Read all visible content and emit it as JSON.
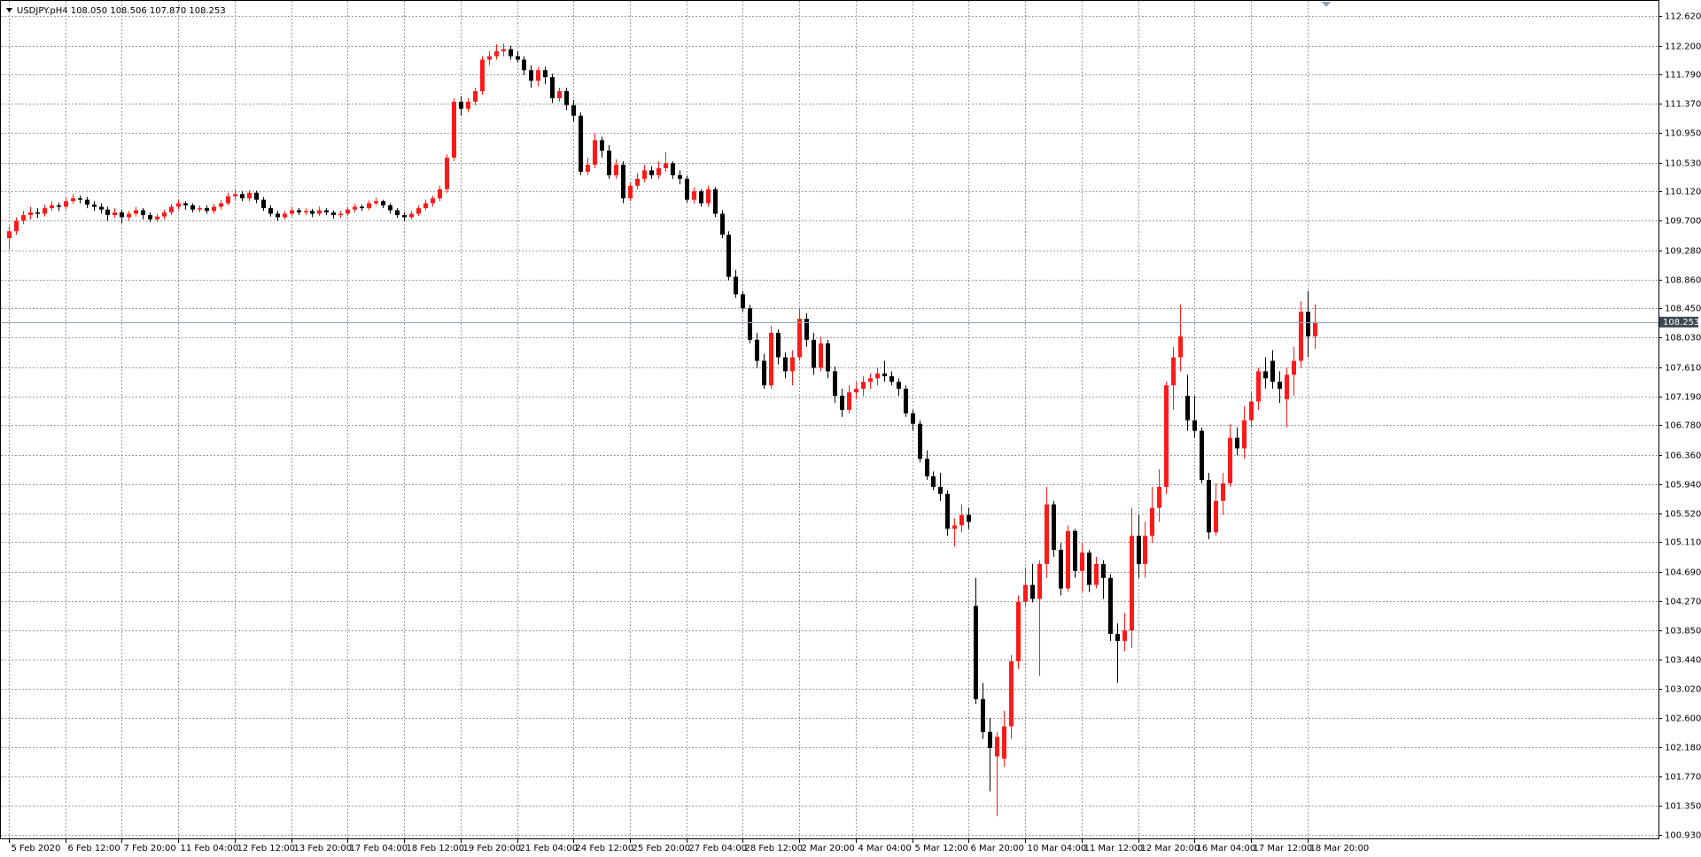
{
  "chart_data": {
    "type": "candlestick",
    "title": "USDJPY.pH4  108.050 108.506 107.870 108.253",
    "up_color": "#ff1a1a",
    "down_color": "#000000",
    "grid": true,
    "xlim": [
      -1,
      233.5
    ],
    "ylim": [
      100.88,
      112.827
    ],
    "last_price": {
      "value": 108.253,
      "label": "108.253"
    },
    "xticks": [
      {
        "value": 0,
        "label": "5 Feb 2020"
      },
      {
        "value": 8,
        "label": "6 Feb 12:00"
      },
      {
        "value": 16,
        "label": "7 Feb 20:00"
      },
      {
        "value": 24,
        "label": "11 Feb 04:00"
      },
      {
        "value": 32,
        "label": "12 Feb 12:00"
      },
      {
        "value": 40,
        "label": "13 Feb 20:00"
      },
      {
        "value": 48,
        "label": "17 Feb 04:00"
      },
      {
        "value": 56,
        "label": "18 Feb 12:00"
      },
      {
        "value": 64,
        "label": "19 Feb 20:00"
      },
      {
        "value": 72,
        "label": "21 Feb 04:00"
      },
      {
        "value": 80,
        "label": "24 Feb 12:00"
      },
      {
        "value": 88,
        "label": "25 Feb 20:00"
      },
      {
        "value": 96,
        "label": "27 Feb 04:00"
      },
      {
        "value": 104,
        "label": "28 Feb 12:00"
      },
      {
        "value": 112,
        "label": "2 Mar 20:00"
      },
      {
        "value": 120,
        "label": "4 Mar 04:00"
      },
      {
        "value": 128,
        "label": "5 Mar 12:00"
      },
      {
        "value": 136,
        "label": "6 Mar 20:00"
      },
      {
        "value": 144,
        "label": "10 Mar 04:00"
      },
      {
        "value": 152,
        "label": "11 Mar 12:00"
      },
      {
        "value": 160,
        "label": "12 Mar 20:00"
      },
      {
        "value": 168,
        "label": "16 Mar 04:00"
      },
      {
        "value": 176,
        "label": "17 Mar 12:00"
      },
      {
        "value": 184,
        "label": "18 Mar 20:00"
      }
    ],
    "yticks": [
      {
        "value": 112.62,
        "label": "112.620"
      },
      {
        "value": 112.2,
        "label": "112.200"
      },
      {
        "value": 111.79,
        "label": "111.790"
      },
      {
        "value": 111.37,
        "label": "111.370"
      },
      {
        "value": 110.95,
        "label": "110.950"
      },
      {
        "value": 110.53,
        "label": "110.530"
      },
      {
        "value": 110.12,
        "label": "110.120"
      },
      {
        "value": 109.7,
        "label": "109.700"
      },
      {
        "value": 109.28,
        "label": "109.280"
      },
      {
        "value": 108.86,
        "label": "108.860"
      },
      {
        "value": 108.45,
        "label": "108.450"
      },
      {
        "value": 108.03,
        "label": "108.030"
      },
      {
        "value": 107.61,
        "label": "107.610"
      },
      {
        "value": 107.19,
        "label": "107.190"
      },
      {
        "value": 106.78,
        "label": "106.780"
      },
      {
        "value": 106.36,
        "label": "106.360"
      },
      {
        "value": 105.94,
        "label": "105.940"
      },
      {
        "value": 105.52,
        "label": "105.520"
      },
      {
        "value": 105.11,
        "label": "105.110"
      },
      {
        "value": 104.69,
        "label": "104.690"
      },
      {
        "value": 104.27,
        "label": "104.270"
      },
      {
        "value": 103.85,
        "label": "103.850"
      },
      {
        "value": 103.44,
        "label": "103.440"
      },
      {
        "value": 103.02,
        "label": "103.020"
      },
      {
        "value": 102.6,
        "label": "102.600"
      },
      {
        "value": 102.18,
        "label": "102.180"
      },
      {
        "value": 101.77,
        "label": "101.770"
      },
      {
        "value": 101.35,
        "label": "101.350"
      },
      {
        "value": 100.93,
        "label": "100.930"
      }
    ],
    "ohlc": [
      [
        109.45,
        109.62,
        109.3,
        109.55
      ],
      [
        109.55,
        109.75,
        109.5,
        109.7
      ],
      [
        109.7,
        109.84,
        109.65,
        109.78
      ],
      [
        109.78,
        109.9,
        109.72,
        109.82
      ],
      [
        109.82,
        109.88,
        109.74,
        109.8
      ],
      [
        109.8,
        109.93,
        109.76,
        109.88
      ],
      [
        109.88,
        109.98,
        109.84,
        109.92
      ],
      [
        109.92,
        109.96,
        109.84,
        109.9
      ],
      [
        109.9,
        110.03,
        109.86,
        109.98
      ],
      [
        109.98,
        110.08,
        109.94,
        110.02
      ],
      [
        110.02,
        110.06,
        109.95,
        110.0
      ],
      [
        110.0,
        110.04,
        109.88,
        109.93
      ],
      [
        109.93,
        109.98,
        109.84,
        109.9
      ],
      [
        109.9,
        109.95,
        109.8,
        109.86
      ],
      [
        109.86,
        109.9,
        109.7,
        109.78
      ],
      [
        109.78,
        109.88,
        109.74,
        109.82
      ],
      [
        109.82,
        109.86,
        109.66,
        109.75
      ],
      [
        109.75,
        109.84,
        109.7,
        109.8
      ],
      [
        109.8,
        109.9,
        109.76,
        109.85
      ],
      [
        109.85,
        109.88,
        109.72,
        109.78
      ],
      [
        109.78,
        109.82,
        109.68,
        109.72
      ],
      [
        109.72,
        109.8,
        109.68,
        109.76
      ],
      [
        109.76,
        109.86,
        109.72,
        109.82
      ],
      [
        109.82,
        109.94,
        109.78,
        109.9
      ],
      [
        109.9,
        110.0,
        109.86,
        109.95
      ],
      [
        109.95,
        109.98,
        109.86,
        109.92
      ],
      [
        109.92,
        109.95,
        109.82,
        109.86
      ],
      [
        109.86,
        109.92,
        109.82,
        109.88
      ],
      [
        109.88,
        109.92,
        109.8,
        109.84
      ],
      [
        109.84,
        109.94,
        109.8,
        109.9
      ],
      [
        109.9,
        110.0,
        109.86,
        109.95
      ],
      [
        109.95,
        110.1,
        109.92,
        110.05
      ],
      [
        110.05,
        110.14,
        110.0,
        110.08
      ],
      [
        110.08,
        110.12,
        109.98,
        110.02
      ],
      [
        110.02,
        110.14,
        109.98,
        110.1
      ],
      [
        110.1,
        110.13,
        109.95,
        110.0
      ],
      [
        110.0,
        110.04,
        109.84,
        109.88
      ],
      [
        109.88,
        109.92,
        109.76,
        109.8
      ],
      [
        109.8,
        109.84,
        109.7,
        109.75
      ],
      [
        109.75,
        109.84,
        109.72,
        109.8
      ],
      [
        109.8,
        109.9,
        109.76,
        109.85
      ],
      [
        109.85,
        109.88,
        109.78,
        109.82
      ],
      [
        109.82,
        109.88,
        109.78,
        109.84
      ],
      [
        109.84,
        109.87,
        109.75,
        109.8
      ],
      [
        109.8,
        109.9,
        109.77,
        109.85
      ],
      [
        109.85,
        109.88,
        109.78,
        109.82
      ],
      [
        109.82,
        109.85,
        109.73,
        109.78
      ],
      [
        109.78,
        109.84,
        109.74,
        109.8
      ],
      [
        109.8,
        109.9,
        109.77,
        109.86
      ],
      [
        109.86,
        109.94,
        109.82,
        109.9
      ],
      [
        109.9,
        109.93,
        109.84,
        109.88
      ],
      [
        109.88,
        109.99,
        109.85,
        109.95
      ],
      [
        109.95,
        110.03,
        109.92,
        109.98
      ],
      [
        109.98,
        110.0,
        109.88,
        109.92
      ],
      [
        109.92,
        109.95,
        109.8,
        109.85
      ],
      [
        109.85,
        109.88,
        109.74,
        109.78
      ],
      [
        109.78,
        109.82,
        109.7,
        109.75
      ],
      [
        109.75,
        109.84,
        109.72,
        109.8
      ],
      [
        109.8,
        109.92,
        109.77,
        109.88
      ],
      [
        109.88,
        110.0,
        109.85,
        109.95
      ],
      [
        109.95,
        110.06,
        109.9,
        110.02
      ],
      [
        110.02,
        110.2,
        109.98,
        110.15
      ],
      [
        110.15,
        110.65,
        110.1,
        110.6
      ],
      [
        110.6,
        111.45,
        110.55,
        111.4
      ],
      [
        111.4,
        111.48,
        111.2,
        111.3
      ],
      [
        111.3,
        111.45,
        111.25,
        111.4
      ],
      [
        111.4,
        111.6,
        111.35,
        111.55
      ],
      [
        111.55,
        112.05,
        111.5,
        112.0
      ],
      [
        112.0,
        112.12,
        111.92,
        112.05
      ],
      [
        112.05,
        112.22,
        112.0,
        112.12
      ],
      [
        112.12,
        112.23,
        112.05,
        112.15
      ],
      [
        112.15,
        112.2,
        112.0,
        112.05
      ],
      [
        112.05,
        112.12,
        111.96,
        112.0
      ],
      [
        112.0,
        112.05,
        111.78,
        111.85
      ],
      [
        111.85,
        111.92,
        111.6,
        111.7
      ],
      [
        111.7,
        111.9,
        111.62,
        111.85
      ],
      [
        111.85,
        111.9,
        111.65,
        111.75
      ],
      [
        111.75,
        111.8,
        111.38,
        111.45
      ],
      [
        111.45,
        111.6,
        111.4,
        111.55
      ],
      [
        111.55,
        111.6,
        111.28,
        111.35
      ],
      [
        111.35,
        111.42,
        111.12,
        111.2
      ],
      [
        111.2,
        111.25,
        110.35,
        110.4
      ],
      [
        110.4,
        110.6,
        110.35,
        110.5
      ],
      [
        110.5,
        110.95,
        110.45,
        110.85
      ],
      [
        110.85,
        110.9,
        110.6,
        110.7
      ],
      [
        110.7,
        110.78,
        110.3,
        110.35
      ],
      [
        110.35,
        110.58,
        110.3,
        110.5
      ],
      [
        110.5,
        110.55,
        109.95,
        110.02
      ],
      [
        110.02,
        110.25,
        109.98,
        110.2
      ],
      [
        110.2,
        110.38,
        110.15,
        110.3
      ],
      [
        110.3,
        110.5,
        110.25,
        110.42
      ],
      [
        110.42,
        110.48,
        110.3,
        110.35
      ],
      [
        110.35,
        110.55,
        110.3,
        110.45
      ],
      [
        110.45,
        110.68,
        110.4,
        110.52
      ],
      [
        110.52,
        110.55,
        110.3,
        110.35
      ],
      [
        110.35,
        110.42,
        110.22,
        110.3
      ],
      [
        110.3,
        110.34,
        109.96,
        110.0
      ],
      [
        110.0,
        110.18,
        109.95,
        110.12
      ],
      [
        110.12,
        110.15,
        109.9,
        109.95
      ],
      [
        109.95,
        110.2,
        109.9,
        110.15
      ],
      [
        110.15,
        110.18,
        109.75,
        109.8
      ],
      [
        109.8,
        109.85,
        109.45,
        109.5
      ],
      [
        109.5,
        109.55,
        108.85,
        108.9
      ],
      [
        108.9,
        109.0,
        108.6,
        108.65
      ],
      [
        108.65,
        108.7,
        108.4,
        108.45
      ],
      [
        108.45,
        108.5,
        107.95,
        108.0
      ],
      [
        108.0,
        108.1,
        107.6,
        107.7
      ],
      [
        107.7,
        107.8,
        107.3,
        107.35
      ],
      [
        107.35,
        108.2,
        107.3,
        108.1
      ],
      [
        108.1,
        108.15,
        107.65,
        107.75
      ],
      [
        107.75,
        107.82,
        107.45,
        107.55
      ],
      [
        107.55,
        107.85,
        107.35,
        107.75
      ],
      [
        107.75,
        108.45,
        107.7,
        108.3
      ],
      [
        108.3,
        108.38,
        107.9,
        108.0
      ],
      [
        108.0,
        108.1,
        107.5,
        107.6
      ],
      [
        107.6,
        108.05,
        107.55,
        107.95
      ],
      [
        107.95,
        108.0,
        107.45,
        107.55
      ],
      [
        107.55,
        107.62,
        107.1,
        107.2
      ],
      [
        107.2,
        107.3,
        106.9,
        107.0
      ],
      [
        107.0,
        107.35,
        106.95,
        107.25
      ],
      [
        107.25,
        107.4,
        107.15,
        107.3
      ],
      [
        107.3,
        107.48,
        107.2,
        107.4
      ],
      [
        107.4,
        107.52,
        107.3,
        107.45
      ],
      [
        107.45,
        107.6,
        107.35,
        107.52
      ],
      [
        107.52,
        107.7,
        107.4,
        107.48
      ],
      [
        107.48,
        107.55,
        107.35,
        107.4
      ],
      [
        107.4,
        107.45,
        107.2,
        107.3
      ],
      [
        107.3,
        107.35,
        106.9,
        106.95
      ],
      [
        106.95,
        107.0,
        106.7,
        106.8
      ],
      [
        106.8,
        106.85,
        106.25,
        106.3
      ],
      [
        106.3,
        106.42,
        106.0,
        106.05
      ],
      [
        106.05,
        106.12,
        105.85,
        105.9
      ],
      [
        105.9,
        106.1,
        105.7,
        105.8
      ],
      [
        105.8,
        105.85,
        105.2,
        105.3
      ],
      [
        105.3,
        105.45,
        105.05,
        105.35
      ],
      [
        105.35,
        105.65,
        105.25,
        105.5
      ],
      [
        105.5,
        105.6,
        105.3,
        105.4
      ],
      [
        104.2,
        104.6,
        102.8,
        102.87
      ],
      [
        102.87,
        103.1,
        102.3,
        102.4
      ],
      [
        102.4,
        102.6,
        101.55,
        102.17
      ],
      [
        102.05,
        102.4,
        101.2,
        102.33
      ],
      [
        102.02,
        102.7,
        101.9,
        102.48
      ],
      [
        102.48,
        103.5,
        102.3,
        103.41
      ],
      [
        103.41,
        104.35,
        103.3,
        104.26
      ],
      [
        104.26,
        104.75,
        104.2,
        104.5
      ],
      [
        104.5,
        104.8,
        104.25,
        104.3
      ],
      [
        104.3,
        104.85,
        103.2,
        104.8
      ],
      [
        104.8,
        105.9,
        104.6,
        105.65
      ],
      [
        105.65,
        105.7,
        104.9,
        105.0
      ],
      [
        105.0,
        105.1,
        104.35,
        104.45
      ],
      [
        104.45,
        105.35,
        104.4,
        105.27
      ],
      [
        105.27,
        105.3,
        104.6,
        104.7
      ],
      [
        104.7,
        105.1,
        104.4,
        104.96
      ],
      [
        104.96,
        105.0,
        104.4,
        104.5
      ],
      [
        104.5,
        104.9,
        104.45,
        104.8
      ],
      [
        104.8,
        104.85,
        104.3,
        104.6
      ],
      [
        104.6,
        104.65,
        103.7,
        103.8
      ],
      [
        103.8,
        103.95,
        103.1,
        103.7
      ],
      [
        103.7,
        104.1,
        103.55,
        103.85
      ],
      [
        103.85,
        105.6,
        103.6,
        105.2
      ],
      [
        105.2,
        105.5,
        104.6,
        104.8
      ],
      [
        104.8,
        105.4,
        104.6,
        105.2
      ],
      [
        105.2,
        105.9,
        105.1,
        105.6
      ],
      [
        105.6,
        106.15,
        105.4,
        105.9
      ],
      [
        105.9,
        107.4,
        105.8,
        107.35
      ],
      [
        107.35,
        107.9,
        107.0,
        107.75
      ],
      [
        107.75,
        108.5,
        107.55,
        108.05
      ],
      [
        107.2,
        107.5,
        106.7,
        106.85
      ],
      [
        106.85,
        107.2,
        106.6,
        106.7
      ],
      [
        106.7,
        106.75,
        105.95,
        106.0
      ],
      [
        106.0,
        106.1,
        105.15,
        105.25
      ],
      [
        105.25,
        105.95,
        105.2,
        105.7
      ],
      [
        105.7,
        106.1,
        105.5,
        105.95
      ],
      [
        105.95,
        106.8,
        105.9,
        106.6
      ],
      [
        106.6,
        106.75,
        106.35,
        106.45
      ],
      [
        106.45,
        107.05,
        106.3,
        106.85
      ],
      [
        106.85,
        107.25,
        106.75,
        107.12
      ],
      [
        107.12,
        107.6,
        107.0,
        107.55
      ],
      [
        107.55,
        107.75,
        107.3,
        107.45
      ],
      [
        107.7,
        107.85,
        107.3,
        107.4
      ],
      [
        107.4,
        107.55,
        107.1,
        107.3
      ],
      [
        107.15,
        107.6,
        106.75,
        107.5
      ],
      [
        107.5,
        107.9,
        107.2,
        107.7
      ],
      [
        107.7,
        108.55,
        107.6,
        108.4
      ],
      [
        108.4,
        108.7,
        107.75,
        108.05
      ],
      [
        108.05,
        108.506,
        107.87,
        108.253
      ]
    ]
  }
}
